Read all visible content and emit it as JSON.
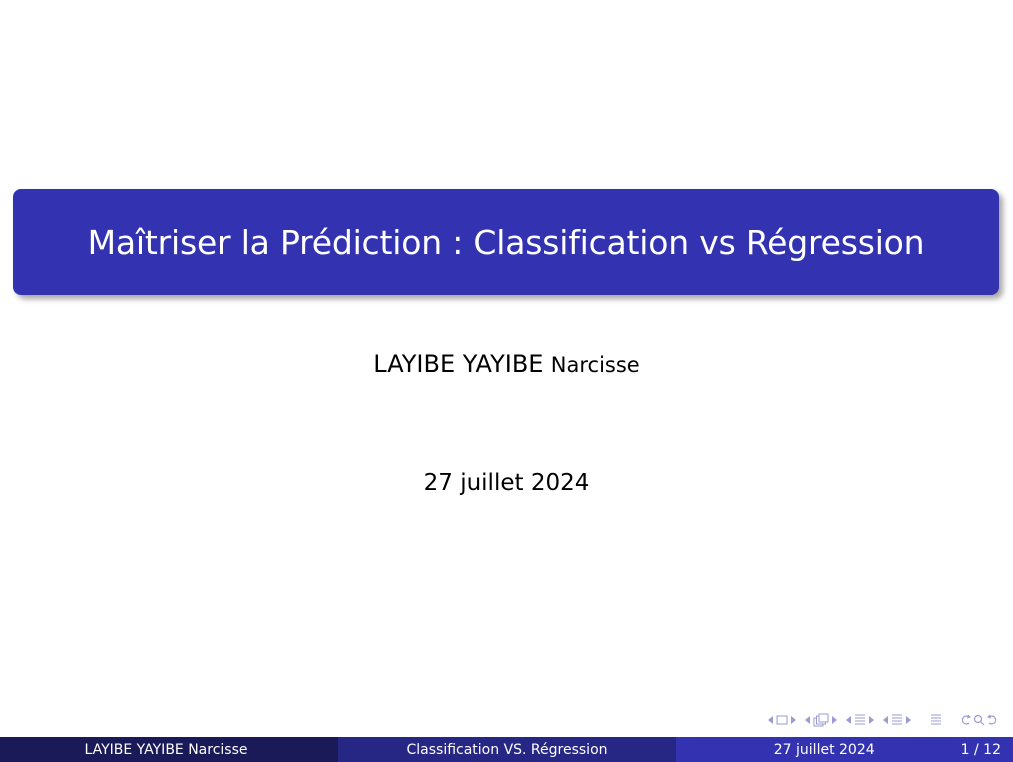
{
  "slide": {
    "title": "Maîtriser la Prédiction : Classification vs Régression",
    "author_surname": "LAYIBE YAYIBE",
    "author_given": "Narcisse",
    "date": "27 juillet 2024"
  },
  "footer": {
    "author": "LAYIBE YAYIBE Narcisse",
    "title": "Classification VS. Régression",
    "date": "27 juillet 2024",
    "page": "1 / 12"
  },
  "navigation": {
    "icons": [
      "nav-prev-icon",
      "frame-icon",
      "nav-next-icon",
      "nav-prev-icon",
      "subsection-icon",
      "nav-next-icon",
      "nav-prev-icon",
      "section-icon",
      "nav-next-icon",
      "nav-prev-icon",
      "section-icon",
      "nav-next-icon",
      "align-icon",
      "search-back-icon",
      "search-icon",
      "search-forward-icon"
    ]
  },
  "colors": {
    "title_bg": "#3333b2",
    "footer_left": "#1a1a59",
    "footer_mid": "#262685",
    "footer_right": "#3333b2",
    "nav_icon": "#9b9bd3"
  }
}
